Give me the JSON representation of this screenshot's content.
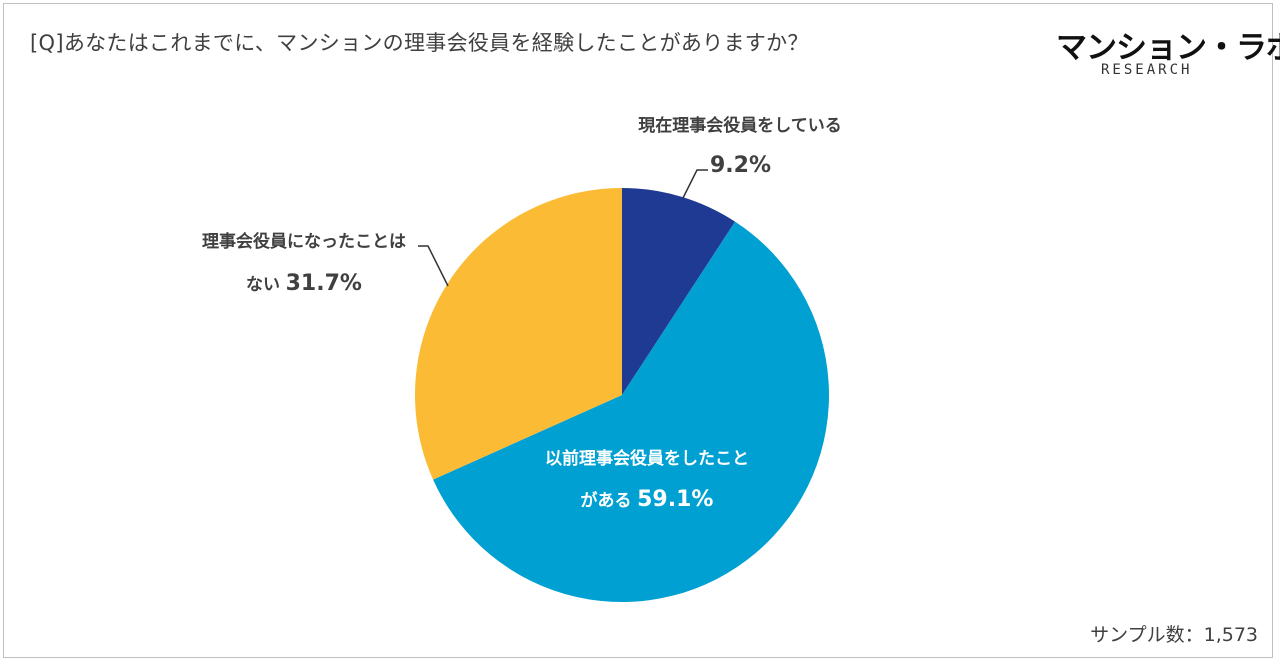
{
  "question": "[Q]あなたはこれまでに、マンションの理事会役員を経験したことがありますか？",
  "logo": {
    "main": "マンション・ラボ",
    "sub": "RESEARCH"
  },
  "sample_text": "サンプル数：1,573",
  "colors": {
    "current": "#1f3a93",
    "former": "#00a0d2",
    "never": "#fbbb35",
    "frame": "#bfbfbf"
  },
  "chart_data": {
    "type": "pie",
    "title": "",
    "start_angle_deg": 0,
    "direction": "clockwise",
    "slices": [
      {
        "label_line1": "現在理事会役員をしている",
        "label_line2": "",
        "pct_text": "9.2%",
        "value": 9.2,
        "color": "#1f3a93",
        "label_pos": "outside-top"
      },
      {
        "label_line1": "以前理事会役員をしたこと",
        "label_line2": "がある",
        "pct_text": "59.1%",
        "value": 59.1,
        "color": "#00a0d2",
        "label_pos": "inside"
      },
      {
        "label_line1": "理事会役員になったことは",
        "label_line2": "ない",
        "pct_text": "31.7%",
        "value": 31.7,
        "color": "#fbbb35",
        "label_pos": "outside-left"
      }
    ]
  }
}
